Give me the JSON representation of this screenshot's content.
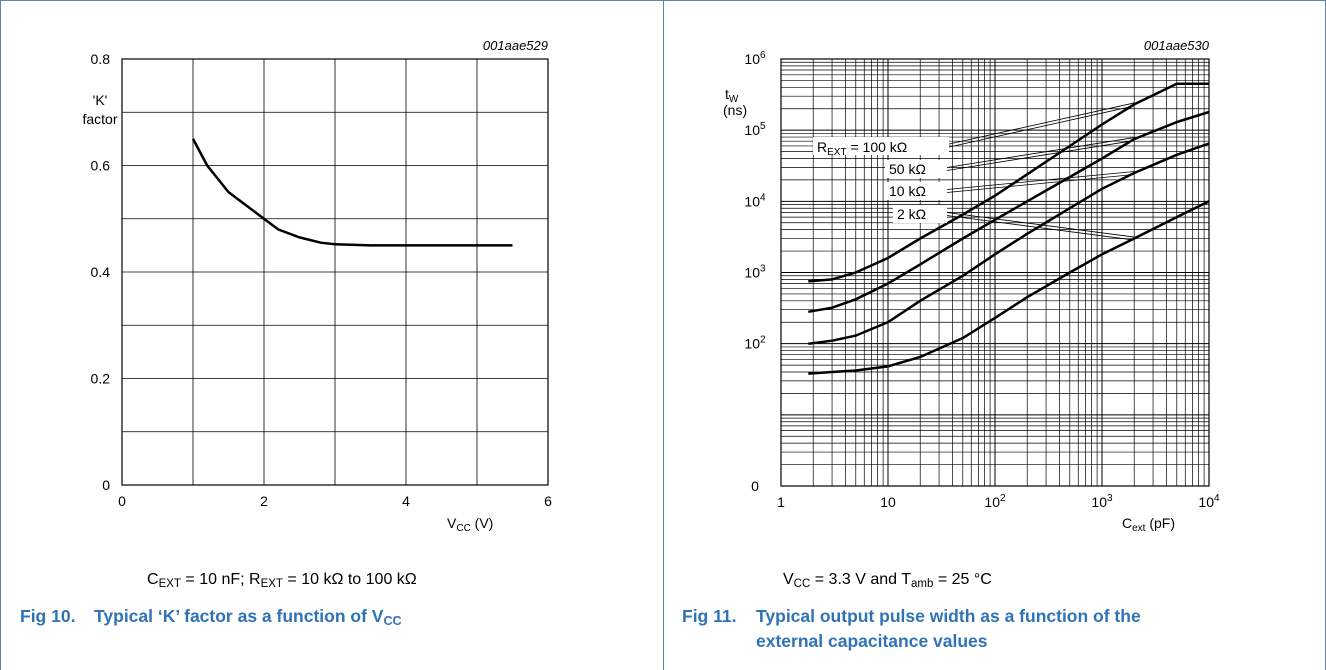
{
  "fig10": {
    "code": "001aae529",
    "ylabel_line1": "'K'",
    "ylabel_line2": "factor",
    "xlabel_main": "V",
    "xlabel_sub": "CC",
    "xlabel_unit": " (V)",
    "condition": {
      "c_main": "C",
      "c_sub": "EXT",
      "c_rest": " = 10 nF; R",
      "r_sub": "EXT",
      "r_rest": " = 10 kΩ to 100 kΩ"
    },
    "title_num": "Fig 10.",
    "title_text": "Typical ‘K’ factor as a function of V",
    "title_sub": "CC"
  },
  "fig11": {
    "code": "001aae530",
    "ylabel_line1": "t",
    "ylabel_sub": "W",
    "ylabel_line2": "(ns)",
    "xlabel_main": "C",
    "xlabel_sub": "ext",
    "xlabel_unit": " (pF)",
    "condition": {
      "v_main": "V",
      "v_sub": "CC",
      "v_rest": " = 3.3 V and T",
      "t_sub": "amb",
      "t_rest": " = 25 °C"
    },
    "title_num": "Fig 11.",
    "title_line1": "Typical output pulse width as a function of the",
    "title_line2": "external capacitance values",
    "curve_labels": [
      {
        "prefix": "R",
        "sub": "EXT",
        "text": " = 100 kΩ"
      },
      {
        "text": "50 kΩ"
      },
      {
        "text": "10 kΩ"
      },
      {
        "text": "2 kΩ"
      }
    ]
  },
  "chart_data": [
    {
      "type": "line",
      "xlim": [
        0,
        6
      ],
      "ylim": [
        0,
        0.8
      ],
      "xticks": [
        "0",
        "2",
        "4",
        "6"
      ],
      "yticks": [
        "0",
        "0.2",
        "0.4",
        "0.6",
        "0.8"
      ],
      "grid": true,
      "series": [
        {
          "x": [
            1.0,
            1.2,
            1.5,
            1.8,
            2.0,
            2.2,
            2.5,
            2.8,
            3.0,
            3.5,
            4.0,
            4.5,
            5.0,
            5.5
          ],
          "y": [
            0.65,
            0.6,
            0.55,
            0.52,
            0.5,
            0.48,
            0.465,
            0.455,
            0.452,
            0.45,
            0.45,
            0.45,
            0.45,
            0.45
          ]
        }
      ]
    },
    {
      "type": "line",
      "xscale": "log",
      "yscale": "log",
      "xlim": [
        1,
        10000
      ],
      "ylim": [
        1,
        1000000
      ],
      "grid": true,
      "series": [
        {
          "name": "R_EXT = 100 kΩ",
          "x": [
            1.8,
            3,
            5,
            10,
            20,
            50,
            100,
            200,
            500,
            1000,
            2000,
            5000,
            10000
          ],
          "y": [
            750,
            800,
            1000,
            1600,
            3000,
            6500,
            12000,
            24000,
            60000,
            120000,
            230000,
            450000,
            450000
          ]
        },
        {
          "name": "50 kΩ",
          "x": [
            1.8,
            3,
            5,
            10,
            20,
            50,
            100,
            200,
            500,
            1000,
            2000,
            5000,
            10000
          ],
          "y": [
            280,
            320,
            420,
            700,
            1300,
            3000,
            5500,
            10000,
            22000,
            40000,
            75000,
            130000,
            180000
          ]
        },
        {
          "name": "10 kΩ",
          "x": [
            1.8,
            3,
            5,
            10,
            20,
            50,
            100,
            200,
            500,
            1000,
            2000,
            5000,
            10000
          ],
          "y": [
            100,
            110,
            130,
            200,
            400,
            900,
            1800,
            3500,
            8000,
            15000,
            25000,
            45000,
            65000
          ]
        },
        {
          "name": "2 kΩ",
          "x": [
            1.8,
            3,
            5,
            10,
            20,
            50,
            100,
            200,
            500,
            1000,
            2000,
            5000,
            10000
          ],
          "y": [
            38,
            40,
            42,
            48,
            65,
            120,
            230,
            450,
            1000,
            1800,
            3000,
            6000,
            10000
          ]
        }
      ]
    }
  ]
}
